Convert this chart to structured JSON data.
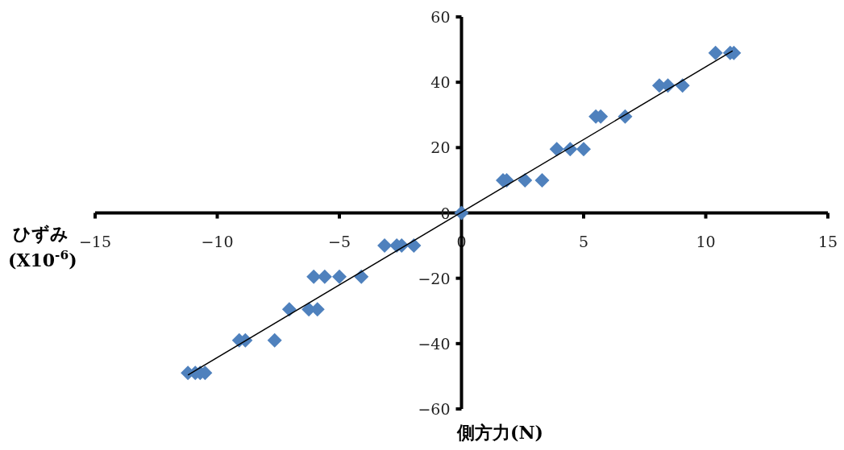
{
  "chart_data": {
    "type": "scatter",
    "xlabel": "側方力(N)",
    "ylabel": "ひずみ(X10$^{-6}$)",
    "xlim": [
      -15,
      15
    ],
    "ylim": [
      -60,
      60
    ],
    "xticks": [
      -15,
      -10,
      -5,
      0,
      5,
      10,
      15
    ],
    "yticks": [
      -60,
      -40,
      -20,
      0,
      20,
      40,
      60
    ],
    "grid": false,
    "series": [
      {
        "color": "#4f81bd",
        "marker": "diamond",
        "x": [
          0,
          1.7,
          1.85,
          2.6,
          3.3,
          3.9,
          4.45,
          5.0,
          5.5,
          5.7,
          6.7,
          8.1,
          8.45,
          9.05,
          10.4,
          11.0,
          11.15,
          -3.15,
          -2.65,
          -2.45,
          -1.95,
          -6.05,
          -5.6,
          -5.0,
          -4.1,
          -7.05,
          -6.25,
          -5.9,
          -9.1,
          -8.85,
          -7.65,
          -11.2,
          -10.9,
          -10.7,
          -10.5
        ],
        "values": [
          0,
          10,
          10,
          10,
          10,
          19.5,
          19.5,
          19.5,
          29.5,
          29.5,
          29.5,
          39,
          39,
          39,
          49,
          49,
          49,
          -10,
          -10,
          -10,
          -10,
          -19.5,
          -19.5,
          -19.5,
          -19.5,
          -29.5,
          -29.5,
          -29.5,
          -39,
          -39,
          -39,
          -49,
          -49,
          -49,
          -49
        ]
      },
      {
        "type": "line",
        "color": "#000000",
        "marker": "none",
        "line_style": "solid",
        "x": [
          -11.2,
          11.1
        ],
        "values": [
          -49.6,
          49.6
        ]
      }
    ]
  }
}
